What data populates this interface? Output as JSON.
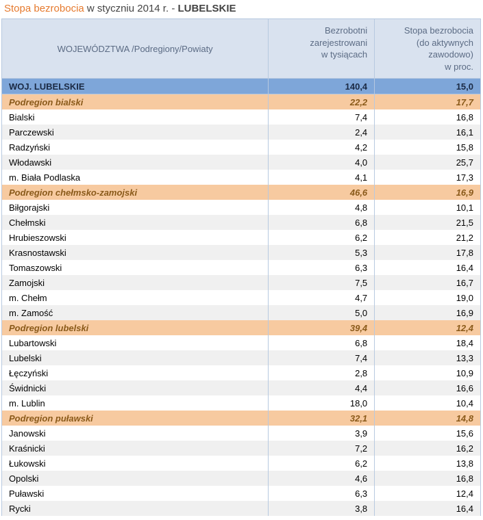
{
  "title": {
    "part1": "Stopa bezrobocia",
    "part2": "w styczniu 2014 r. - ",
    "part3": "LUBELSKIE"
  },
  "columns": {
    "c1": "WOJEWÓDZTWA /Podregiony/Powiaty",
    "c2_l1": "Bezrobotni",
    "c2_l2": "zarejestrowani",
    "c2_l3": "w tysiącach",
    "c3_l1": "Stopa bezrobocia",
    "c3_l2": "(do aktywnych zawodowo)",
    "c3_l3": "w proc."
  },
  "rows": [
    {
      "type": "region",
      "name": "WOJ. LUBELSKIE",
      "v1": "140,4",
      "v2": "15,0"
    },
    {
      "type": "subregion",
      "name": "Podregion bialski",
      "v1": "22,2",
      "v2": "17,7"
    },
    {
      "type": "data",
      "name": "Bialski",
      "v1": "7,4",
      "v2": "16,8"
    },
    {
      "type": "data",
      "name": "Parczewski",
      "v1": "2,4",
      "v2": "16,1"
    },
    {
      "type": "data",
      "name": "Radzyński",
      "v1": "4,2",
      "v2": "15,8"
    },
    {
      "type": "data",
      "name": "Włodawski",
      "v1": "4,0",
      "v2": "25,7"
    },
    {
      "type": "data",
      "name": "m. Biała Podlaska",
      "v1": "4,1",
      "v2": "17,3"
    },
    {
      "type": "subregion",
      "name": "Podregion chełmsko-zamojski",
      "v1": "46,6",
      "v2": "16,9"
    },
    {
      "type": "data",
      "name": "Biłgorajski",
      "v1": "4,8",
      "v2": "10,1"
    },
    {
      "type": "data",
      "name": "Chełmski",
      "v1": "6,8",
      "v2": "21,5"
    },
    {
      "type": "data",
      "name": "Hrubieszowski",
      "v1": "6,2",
      "v2": "21,2"
    },
    {
      "type": "data",
      "name": "Krasnostawski",
      "v1": "5,3",
      "v2": "17,8"
    },
    {
      "type": "data",
      "name": "Tomaszowski",
      "v1": "6,3",
      "v2": "16,4"
    },
    {
      "type": "data",
      "name": "Zamojski",
      "v1": "7,5",
      "v2": "16,7"
    },
    {
      "type": "data",
      "name": "m. Chełm",
      "v1": "4,7",
      "v2": "19,0"
    },
    {
      "type": "data",
      "name": "m. Zamość",
      "v1": "5,0",
      "v2": "16,9"
    },
    {
      "type": "subregion",
      "name": "Podregion lubelski",
      "v1": "39,4",
      "v2": "12,4"
    },
    {
      "type": "data",
      "name": "Lubartowski",
      "v1": "6,8",
      "v2": "18,4"
    },
    {
      "type": "data",
      "name": "Lubelski",
      "v1": "7,4",
      "v2": "13,3"
    },
    {
      "type": "data",
      "name": "Łęczyński",
      "v1": "2,8",
      "v2": "10,9"
    },
    {
      "type": "data",
      "name": "Świdnicki",
      "v1": "4,4",
      "v2": "16,6"
    },
    {
      "type": "data",
      "name": "m. Lublin",
      "v1": "18,0",
      "v2": "10,4"
    },
    {
      "type": "subregion",
      "name": "Podregion puławski",
      "v1": "32,1",
      "v2": "14,8"
    },
    {
      "type": "data",
      "name": "Janowski",
      "v1": "3,9",
      "v2": "15,6"
    },
    {
      "type": "data",
      "name": "Kraśnicki",
      "v1": "7,2",
      "v2": "16,2"
    },
    {
      "type": "data",
      "name": "Łukowski",
      "v1": "6,2",
      "v2": "13,8"
    },
    {
      "type": "data",
      "name": "Opolski",
      "v1": "4,6",
      "v2": "16,8"
    },
    {
      "type": "data",
      "name": "Puławski",
      "v1": "6,3",
      "v2": "12,4"
    },
    {
      "type": "data",
      "name": "Rycki",
      "v1": "3,8",
      "v2": "16,4"
    }
  ],
  "style": {
    "header_bg": "#d9e2ef",
    "header_text": "#5b6b84",
    "border": "#b7c9e0",
    "region_bg": "#7ea6d9",
    "subregion_bg": "#f7caa0",
    "subregion_text": "#8a5a1a",
    "even_bg": "#ffffff",
    "odd_bg": "#f0f0f0",
    "title_accent": "#e67a2e"
  }
}
